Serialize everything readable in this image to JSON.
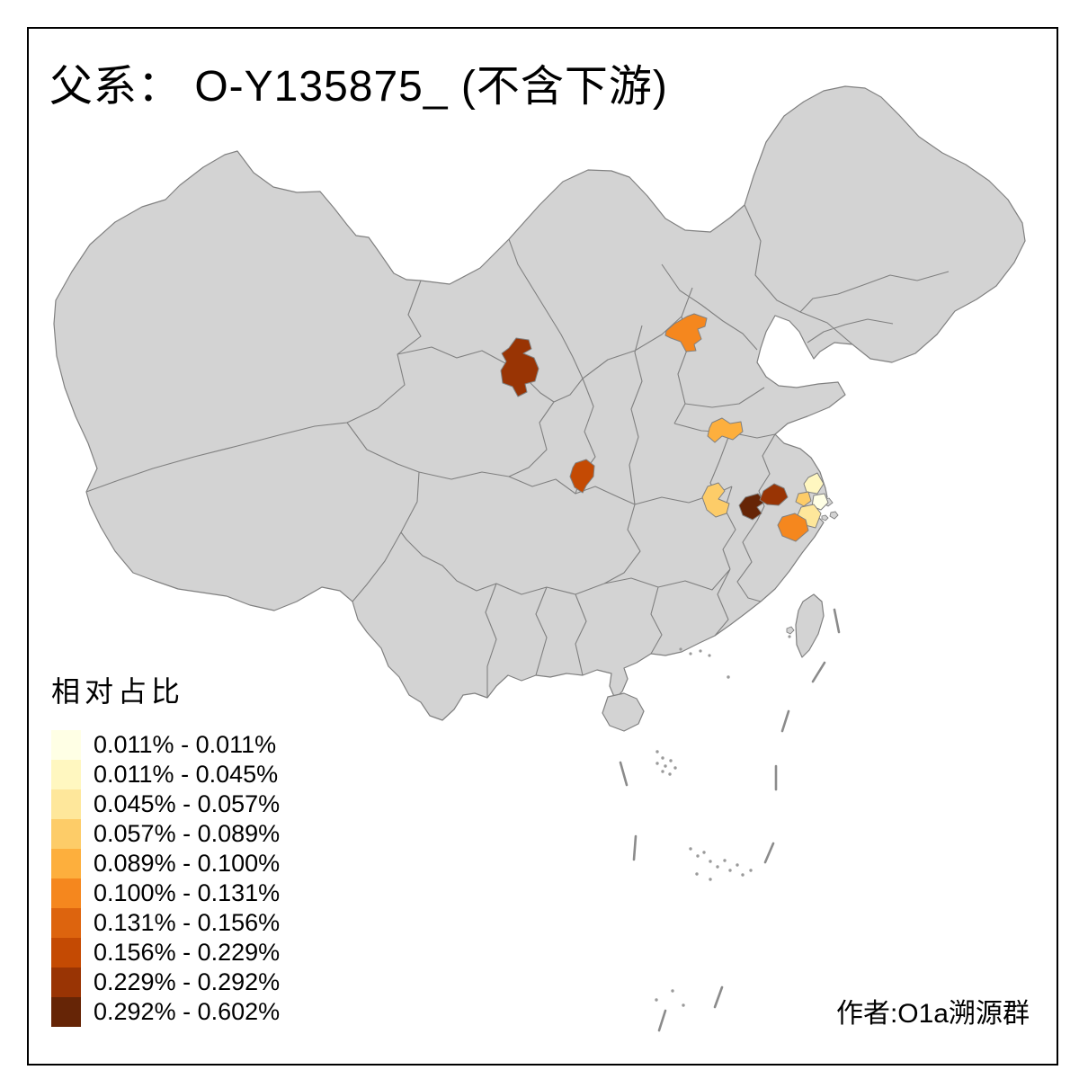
{
  "title": "父系： O-Y135875_ (不含下游)",
  "credit": "作者:O1a溯源群",
  "colors": {
    "background": "#FFFFFF",
    "land": "#D3D3D3",
    "province_border": "#808080",
    "frame": "#000000",
    "text": "#000000"
  },
  "legend": {
    "title": "相对占比",
    "bins": [
      {
        "label": "0.011% - 0.011%",
        "color": "#FFFFE5"
      },
      {
        "label": "0.011% - 0.045%",
        "color": "#FFF7C0"
      },
      {
        "label": "0.045% - 0.057%",
        "color": "#FEE79B"
      },
      {
        "label": "0.057% - 0.089%",
        "color": "#FDCC68"
      },
      {
        "label": "0.089% - 0.100%",
        "color": "#FDAF3D"
      },
      {
        "label": "0.100% - 0.131%",
        "color": "#F5871E"
      },
      {
        "label": "0.131% - 0.156%",
        "color": "#DD640E"
      },
      {
        "label": "0.156% - 0.229%",
        "color": "#C44A03"
      },
      {
        "label": "0.229% - 0.292%",
        "color": "#993404"
      },
      {
        "label": "0.292% - 0.602%",
        "color": "#662506"
      }
    ]
  },
  "map": {
    "regions": [
      {
        "id": "gansu-central",
        "bin_label": "0.229% - 0.292%",
        "color": "#993404"
      },
      {
        "id": "nw-hebei",
        "bin_label": "0.100% - 0.131%",
        "color": "#F5871E"
      },
      {
        "id": "n-jiangsu",
        "bin_label": "0.089% - 0.100%",
        "color": "#FDAF3D"
      },
      {
        "id": "s-shaanxi",
        "bin_label": "0.156% - 0.229%",
        "color": "#C44A03"
      },
      {
        "id": "w-anhui",
        "bin_label": "0.057% - 0.089%",
        "color": "#FDCC68"
      },
      {
        "id": "sw-anhui",
        "bin_label": "0.292% - 0.602%",
        "color": "#662506"
      },
      {
        "id": "s-anhui",
        "bin_label": "0.229% - 0.292%",
        "color": "#993404"
      },
      {
        "id": "s-jiangsu",
        "bin_label": "0.011% - 0.045%",
        "color": "#FFF7C0"
      },
      {
        "id": "shanghai-area",
        "bin_label": "0.011% - 0.011%",
        "color": "#FFFFE5"
      },
      {
        "id": "n-zhejiang-a",
        "bin_label": "0.057% - 0.089%",
        "color": "#FDCC68"
      },
      {
        "id": "n-zhejiang-b",
        "bin_label": "0.045% - 0.057%",
        "color": "#FEE79B"
      },
      {
        "id": "nw-zhejiang",
        "bin_label": "0.100% - 0.131%",
        "color": "#F5871E"
      }
    ]
  }
}
